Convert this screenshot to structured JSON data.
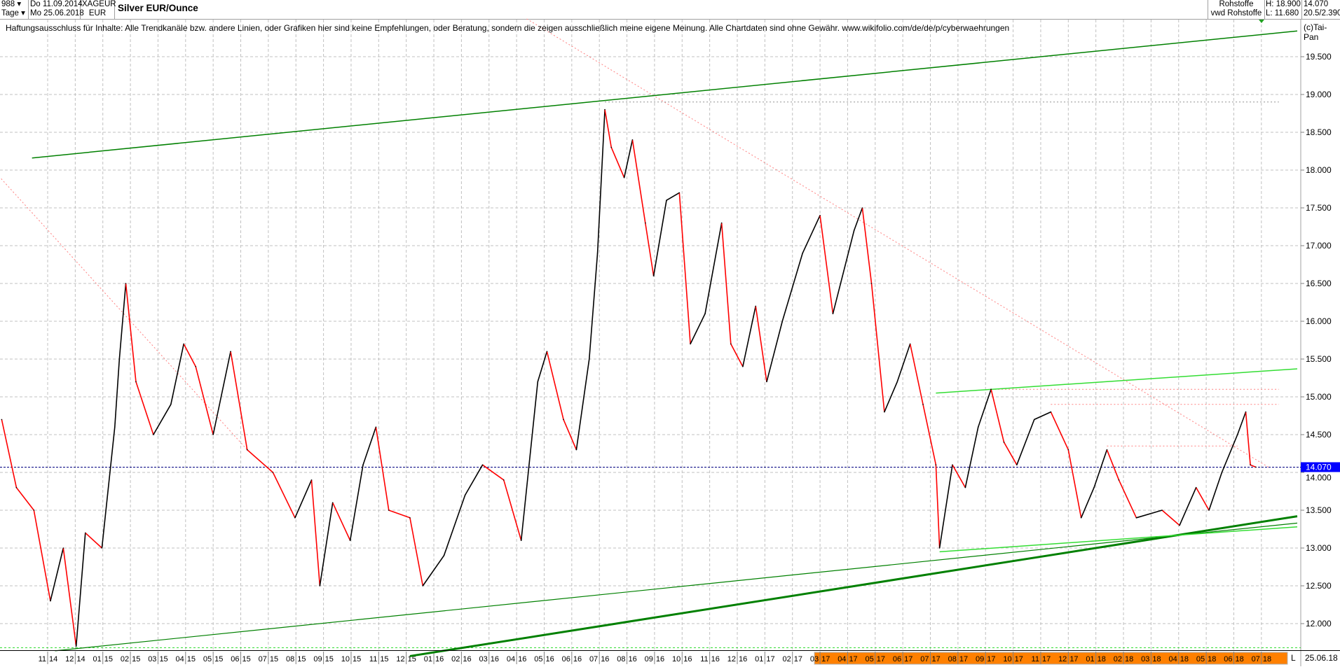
{
  "header": {
    "count": "988",
    "period": "Tage",
    "date_from": "Do 11.09.2014",
    "date_to": "Mo 25.06.2018",
    "symbol": "XAGEUR",
    "currency": "EUR",
    "title": "Silver EUR/Ounce",
    "source1": "Rohstoffe",
    "source2": "vwd Rohstoffe",
    "high": "H: 18.900",
    "low": "L: 11.680",
    "last": "14.070",
    "info": "20.5/2.390"
  },
  "disclaimer": "Haftungsausschluss für Inhalte: Alle Trendkanäle bzw. andere Linien, oder Grafiken hier sind keine Empfehlungen, oder Beratung, sondern die zeigen ausschließlich meine eigene Meinung. Alle Chartdaten sind ohne Gewähr.  www.wikifolio.com/de/de/p/cyberwaehrungen",
  "copyright": "(c)Tai-Pan",
  "last_date": "25.06.18",
  "scale_button": "L",
  "colors": {
    "up": "#000000",
    "down": "#ff0000",
    "trend_dark": "#008000",
    "trend_light": "#33dd33",
    "last_badge": "#0000ff",
    "highlight_band": "#ff8000"
  },
  "chart_data": {
    "type": "line",
    "ylim": [
      11.6,
      20.0
    ],
    "yticks": [
      "12.000",
      "12.500",
      "13.000",
      "13.500",
      "14.000",
      "14.500",
      "15.000",
      "15.500",
      "16.000",
      "16.500",
      "17.000",
      "17.500",
      "18.000",
      "18.500",
      "19.000",
      "19.500"
    ],
    "xticks": [
      "11 14",
      "12 14",
      "01 15",
      "02 15",
      "03 15",
      "04 15",
      "05 15",
      "06 15",
      "07 15",
      "08 15",
      "09 15",
      "10 15",
      "11 15",
      "12 15",
      "01 16",
      "02 16",
      "03 16",
      "04 16",
      "05 16",
      "06 16",
      "07 16",
      "08 16",
      "09 16",
      "10 16",
      "11 16",
      "12 16",
      "01 17",
      "02 17",
      "03 17",
      "04 17",
      "05 17",
      "06 17",
      "07 17",
      "08 17",
      "09 17",
      "10 17",
      "11 17",
      "12 17",
      "01 18",
      "02 18",
      "03 18",
      "04 18",
      "05 18",
      "06 18",
      "07 18"
    ],
    "highlighted_ticks_from": "03 17",
    "grid": true,
    "last_value": 14.07,
    "high": 18.9,
    "low": 11.68,
    "points": [
      [
        "2014-09-11",
        14.7
      ],
      [
        "2014-09-27",
        13.8
      ],
      [
        "2014-10-16",
        13.5
      ],
      [
        "2014-11-04",
        12.3
      ],
      [
        "2014-11-18",
        13.0
      ],
      [
        "2014-12-02",
        11.7
      ],
      [
        "2014-12-12",
        13.2
      ],
      [
        "2014-12-30",
        13.0
      ],
      [
        "2015-01-14",
        14.6
      ],
      [
        "2015-01-19",
        15.5
      ],
      [
        "2015-01-26",
        16.5
      ],
      [
        "2015-02-07",
        15.2
      ],
      [
        "2015-02-26",
        14.5
      ],
      [
        "2015-03-15",
        14.9
      ],
      [
        "2015-03-29",
        15.7
      ],
      [
        "2015-04-12",
        15.4
      ],
      [
        "2015-05-01",
        14.5
      ],
      [
        "2015-05-20",
        15.6
      ],
      [
        "2015-06-08",
        14.3
      ],
      [
        "2015-07-06",
        14.0
      ],
      [
        "2015-07-30",
        13.4
      ],
      [
        "2015-08-18",
        13.9
      ],
      [
        "2015-08-27",
        12.5
      ],
      [
        "2015-09-11",
        13.6
      ],
      [
        "2015-09-30",
        13.1
      ],
      [
        "2015-10-14",
        14.1
      ],
      [
        "2015-10-28",
        14.6
      ],
      [
        "2015-11-12",
        13.5
      ],
      [
        "2015-12-05",
        13.4
      ],
      [
        "2015-12-19",
        12.5
      ],
      [
        "2016-01-12",
        12.9
      ],
      [
        "2016-02-05",
        13.7
      ],
      [
        "2016-02-24",
        14.1
      ],
      [
        "2016-03-17",
        13.9
      ],
      [
        "2016-04-06",
        13.1
      ],
      [
        "2016-04-24",
        15.2
      ],
      [
        "2016-05-04",
        15.6
      ],
      [
        "2016-05-22",
        14.7
      ],
      [
        "2016-06-06",
        14.3
      ],
      [
        "2016-06-20",
        15.5
      ],
      [
        "2016-06-29",
        16.9
      ],
      [
        "2016-07-07",
        18.8
      ],
      [
        "2016-07-14",
        18.3
      ],
      [
        "2016-07-28",
        17.9
      ],
      [
        "2016-08-07",
        18.4
      ],
      [
        "2016-08-21",
        17.3
      ],
      [
        "2016-08-30",
        16.6
      ],
      [
        "2016-09-14",
        17.6
      ],
      [
        "2016-09-28",
        17.7
      ],
      [
        "2016-10-10",
        15.7
      ],
      [
        "2016-10-26",
        16.1
      ],
      [
        "2016-11-14",
        17.3
      ],
      [
        "2016-11-24",
        15.7
      ],
      [
        "2016-12-07",
        15.4
      ],
      [
        "2016-12-21",
        16.2
      ],
      [
        "2017-01-03",
        15.2
      ],
      [
        "2017-01-20",
        16.0
      ],
      [
        "2017-02-12",
        16.9
      ],
      [
        "2017-03-01",
        17.4
      ],
      [
        "2017-03-15",
        16.1
      ],
      [
        "2017-04-08",
        17.2
      ],
      [
        "2017-04-17",
        17.5
      ],
      [
        "2017-04-27",
        16.5
      ],
      [
        "2017-05-11",
        14.8
      ],
      [
        "2017-05-25",
        15.2
      ],
      [
        "2017-06-09",
        15.7
      ],
      [
        "2017-06-23",
        14.9
      ],
      [
        "2017-07-07",
        14.1
      ],
      [
        "2017-07-11",
        13.0
      ],
      [
        "2017-07-25",
        14.1
      ],
      [
        "2017-08-09",
        13.8
      ],
      [
        "2017-08-23",
        14.6
      ],
      [
        "2017-09-07",
        15.1
      ],
      [
        "2017-09-21",
        14.4
      ],
      [
        "2017-10-05",
        14.1
      ],
      [
        "2017-10-24",
        14.7
      ],
      [
        "2017-11-12",
        14.8
      ],
      [
        "2017-12-01",
        14.3
      ],
      [
        "2017-12-15",
        13.4
      ],
      [
        "2017-12-29",
        13.8
      ],
      [
        "2018-01-13",
        14.3
      ],
      [
        "2018-01-26",
        13.9
      ],
      [
        "2018-02-15",
        13.4
      ],
      [
        "2018-03-13",
        13.5
      ],
      [
        "2018-04-02",
        13.3
      ],
      [
        "2018-04-20",
        13.8
      ],
      [
        "2018-05-04",
        13.5
      ],
      [
        "2018-05-18",
        14.0
      ],
      [
        "2018-06-05",
        14.5
      ],
      [
        "2018-06-14",
        14.8
      ],
      [
        "2018-06-19",
        14.1
      ],
      [
        "2018-06-25",
        14.07
      ]
    ],
    "trendlines": [
      {
        "color": "dark",
        "width": 1.5,
        "from": [
          "2014-10-14",
          18.16
        ],
        "to": [
          "2018-08-10",
          19.84
        ]
      },
      {
        "color": "dark",
        "width": 1.2,
        "from": [
          "2014-11-09",
          11.64
        ],
        "to": [
          "2018-08-10",
          13.33
        ]
      },
      {
        "color": "dark",
        "width": 3,
        "from": [
          "2015-12-05",
          11.57
        ],
        "to": [
          "2018-08-10",
          13.42
        ]
      },
      {
        "color": "light",
        "width": 1.5,
        "from": [
          "2017-07-07",
          15.05
        ],
        "to": [
          "2018-08-10",
          15.37
        ]
      },
      {
        "color": "light",
        "width": 1.5,
        "from": [
          "2017-07-11",
          12.95
        ],
        "to": [
          "2018-08-10",
          13.28
        ]
      }
    ],
    "dotted_lines": [
      {
        "color": "#ff8080",
        "from": [
          "2014-08-20",
          18.16
        ],
        "to": [
          "2015-06-08",
          14.3
        ]
      },
      {
        "color": "#ff8080",
        "from": [
          "2016-04-12",
          20.0
        ],
        "to": [
          "2018-07-10",
          14.06
        ]
      },
      {
        "color": "#ff8080",
        "from": [
          "2017-11-12",
          14.9
        ],
        "to": [
          "2018-07-20",
          14.9
        ]
      },
      {
        "color": "#ff8080",
        "from": [
          "2018-01-13",
          14.35
        ],
        "to": [
          "2018-06-05",
          14.35
        ]
      },
      {
        "color": "#ff8080",
        "from": [
          "2017-09-07",
          15.1
        ],
        "to": [
          "2018-07-20",
          15.1
        ]
      },
      {
        "color": "#909090",
        "from": [
          "2016-07-07",
          18.9
        ],
        "to": [
          "2018-07-20",
          18.9
        ]
      }
    ]
  }
}
